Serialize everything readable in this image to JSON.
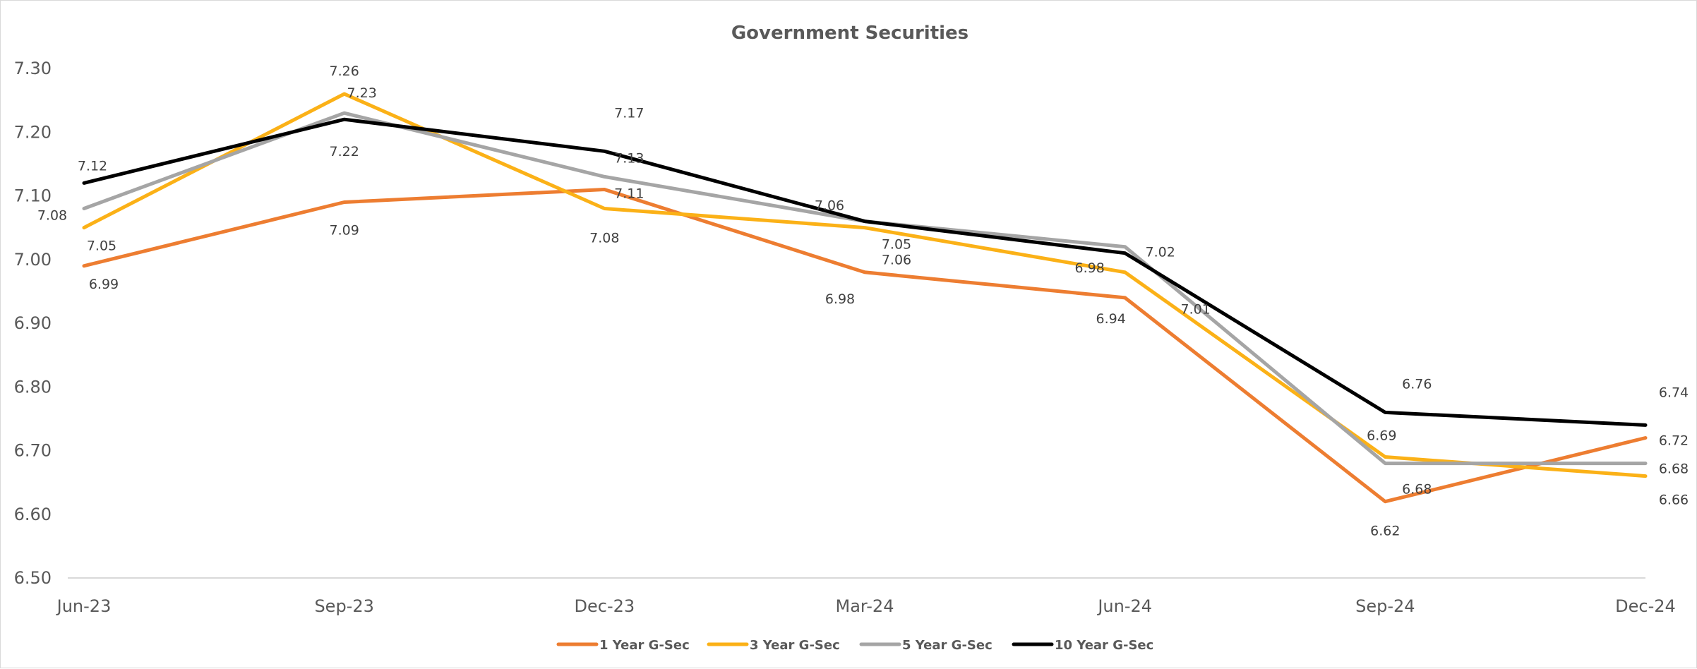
{
  "chart_data": {
    "type": "line",
    "title": "Government Securities",
    "xlabel": "",
    "ylabel": "",
    "categories": [
      "Jun-23",
      "Sep-23",
      "Dec-23",
      "Mar-24",
      "Jun-24",
      "Sep-24",
      "Dec-24"
    ],
    "ylim": [
      6.5,
      7.3
    ],
    "yticks": [
      "7.30",
      "7.20",
      "7.10",
      "7.00",
      "6.90",
      "6.80",
      "6.70",
      "6.60",
      "6.50"
    ],
    "grid": false,
    "legend_position": "bottom",
    "series": [
      {
        "name": "1 Year G-Sec",
        "color": "#ED7D31",
        "values": [
          6.99,
          7.09,
          7.11,
          6.98,
          6.94,
          6.62,
          6.72
        ],
        "labels": [
          "6.99",
          "7.09",
          "7.11",
          "6.98",
          "6.94",
          "6.62",
          "6.72"
        ]
      },
      {
        "name": "3 Year G-Sec",
        "color": "#FBB117",
        "values": [
          7.05,
          7.26,
          7.08,
          7.05,
          6.98,
          6.69,
          6.66
        ],
        "labels": [
          "7.05",
          "7.26",
          "7.08",
          "7.05",
          "6.98",
          "6.69",
          "6.66"
        ]
      },
      {
        "name": "5 Year G-Sec",
        "color": "#A5A5A5",
        "values": [
          7.08,
          7.23,
          7.13,
          7.06,
          7.02,
          6.68,
          6.68
        ],
        "labels": [
          "7.08",
          "7.23",
          "7.13",
          "7.06",
          "7.02",
          "6.68",
          "6.68"
        ]
      },
      {
        "name": "10 Year G-Sec",
        "color": "#000000",
        "values": [
          7.12,
          7.22,
          7.17,
          7.06,
          7.01,
          6.76,
          6.74
        ],
        "labels": [
          "7.12",
          "7.22",
          "7.17",
          "7.06",
          "7.01",
          "6.76",
          "6.74"
        ]
      }
    ]
  }
}
